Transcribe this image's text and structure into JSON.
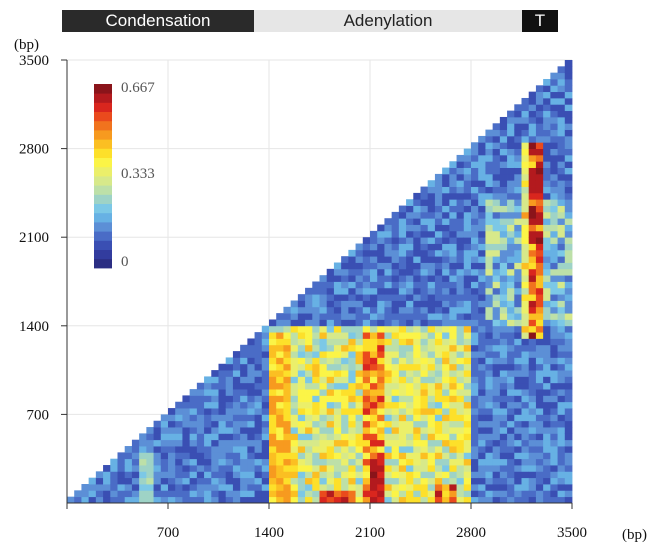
{
  "domains": [
    {
      "label": "Condensation",
      "color": "#2a2a2a"
    },
    {
      "label": "Adenylation",
      "color": "#e6e6e6"
    },
    {
      "label": "T",
      "color": "#111111"
    }
  ],
  "axis_unit_y": "(bp)",
  "axis_unit_x": "(bp)",
  "colorbar": {
    "labels": [
      "0.667",
      "0.333",
      "0"
    ],
    "colors": [
      "#2b2e83",
      "#323c9e",
      "#3a4fb3",
      "#4a6cc6",
      "#5c8fd6",
      "#67b1e4",
      "#7cc8e6",
      "#9ed3c6",
      "#bde0a8",
      "#d7e98a",
      "#ebef6a",
      "#fbf447",
      "#fde02a",
      "#fbbf22",
      "#f79a1f",
      "#f1731e",
      "#ea4a1d",
      "#d9261e",
      "#b31a1e",
      "#8a141a"
    ]
  },
  "chart_data": {
    "type": "heatmap",
    "title": "",
    "xlabel": "(bp)",
    "ylabel": "(bp)",
    "xlim": [
      0,
      3500
    ],
    "ylim": [
      0,
      3500
    ],
    "x_ticks": [
      700,
      1400,
      2100,
      2800,
      3500
    ],
    "y_ticks": [
      700,
      1400,
      2100,
      2800,
      3500
    ],
    "color_scale": [
      0,
      0.667
    ],
    "shape": "lower-right triangle (x >= y)",
    "high_regions": [
      {
        "x": [
          1400,
          2800
        ],
        "y": [
          0,
          1400
        ],
        "value": 0.35
      },
      {
        "x": [
          2100,
          2200
        ],
        "y": [
          0,
          1400
        ],
        "value": 0.55
      },
      {
        "x": [
          3200,
          3300
        ],
        "y": [
          1400,
          2800
        ],
        "value": 0.55
      },
      {
        "x": [
          3200,
          3300
        ],
        "y": [
          2400,
          2650
        ],
        "value": 0.62
      }
    ]
  }
}
